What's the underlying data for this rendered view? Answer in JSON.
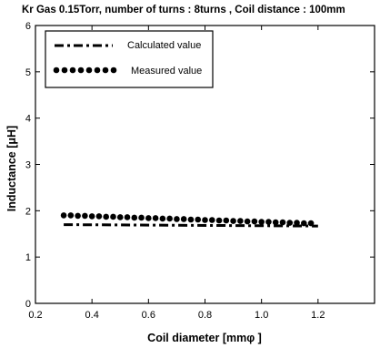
{
  "chart_data": {
    "type": "scatter",
    "title": "Kr Gas 0.15Torr, number of turns : 8turns , Coil distance : 100mm",
    "xlabel": "Coil diameter [mmφ ]",
    "ylabel": "Inductance [μH]",
    "xlim": [
      0.2,
      1.4
    ],
    "ylim": [
      0,
      6
    ],
    "xticks": [
      0.2,
      0.4,
      0.6,
      0.8,
      1.0,
      1.2
    ],
    "xtick_labels": [
      "0.2",
      "0.4",
      "0.6",
      "0.8",
      "1.0",
      "1.2"
    ],
    "yticks": [
      0,
      1,
      2,
      3,
      4,
      5,
      6
    ],
    "ytick_labels": [
      "0",
      "1",
      "2",
      "3",
      "4",
      "5",
      "6"
    ],
    "grid": false,
    "legend_position": "top-left",
    "series": [
      {
        "name": "Calculated value",
        "style": "dash-dot line",
        "color": "#000000",
        "x": [
          0.3,
          1.2
        ],
        "y": [
          1.7,
          1.67
        ]
      },
      {
        "name": "Measured value",
        "style": "dots",
        "color": "#000000",
        "x": [
          0.3,
          0.325,
          0.35,
          0.375,
          0.4,
          0.425,
          0.45,
          0.475,
          0.5,
          0.525,
          0.55,
          0.575,
          0.6,
          0.625,
          0.65,
          0.675,
          0.7,
          0.725,
          0.75,
          0.775,
          0.8,
          0.825,
          0.85,
          0.875,
          0.9,
          0.925,
          0.95,
          0.975,
          1.0,
          1.025,
          1.05,
          1.075,
          1.1,
          1.125,
          1.15,
          1.175
        ],
        "y": [
          1.9,
          1.9,
          1.89,
          1.89,
          1.88,
          1.88,
          1.87,
          1.87,
          1.86,
          1.86,
          1.85,
          1.85,
          1.84,
          1.84,
          1.83,
          1.83,
          1.82,
          1.82,
          1.81,
          1.81,
          1.8,
          1.8,
          1.79,
          1.79,
          1.78,
          1.78,
          1.77,
          1.77,
          1.76,
          1.76,
          1.75,
          1.75,
          1.74,
          1.74,
          1.73,
          1.73
        ]
      }
    ]
  }
}
